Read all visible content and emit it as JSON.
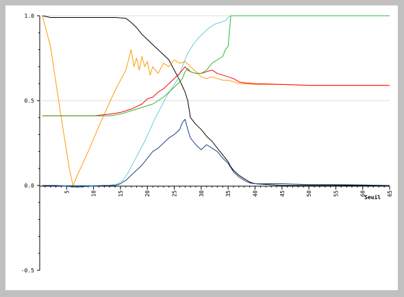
{
  "chart_data": {
    "type": "line",
    "xlabel": "Seuil",
    "ylabel": "",
    "title": "",
    "xlim": [
      0,
      65
    ],
    "ylim": [
      -0.5,
      1.0
    ],
    "x_ticks": [
      5,
      10,
      15,
      20,
      25,
      30,
      35,
      40,
      45,
      50,
      55,
      60,
      65
    ],
    "y_ticks": [
      -0.5,
      0.0,
      0.5,
      1.0
    ],
    "y_tick_labels": [
      "-0.5",
      "0.0",
      "0.5",
      "1.0"
    ],
    "gridlines": [
      0.5,
      1.0
    ],
    "grid": "horizontal at 0.5 and 1.0",
    "legend": "none",
    "series": [
      {
        "color": "#000000",
        "points": [
          [
            0.5,
            1.0
          ],
          [
            2,
            0.99
          ],
          [
            5,
            0.99
          ],
          [
            8,
            0.99
          ],
          [
            10,
            0.99
          ],
          [
            12,
            0.99
          ],
          [
            14,
            0.99
          ],
          [
            16,
            0.985
          ],
          [
            17,
            0.96
          ],
          [
            18,
            0.93
          ],
          [
            19,
            0.89
          ],
          [
            20,
            0.86
          ],
          [
            21,
            0.83
          ],
          [
            22,
            0.8
          ],
          [
            23,
            0.77
          ],
          [
            24,
            0.74
          ],
          [
            25,
            0.68
          ],
          [
            26,
            0.62
          ],
          [
            27,
            0.55
          ],
          [
            27.5,
            0.5
          ],
          [
            28,
            0.4
          ],
          [
            29,
            0.36
          ],
          [
            30,
            0.33
          ],
          [
            31,
            0.29
          ],
          [
            32,
            0.26
          ],
          [
            33,
            0.22
          ],
          [
            34,
            0.18
          ],
          [
            35,
            0.14
          ],
          [
            35.5,
            0.11
          ],
          [
            36,
            0.09
          ],
          [
            37,
            0.06
          ],
          [
            38,
            0.04
          ],
          [
            39,
            0.02
          ],
          [
            40,
            0.01
          ],
          [
            45,
            0.0
          ],
          [
            50,
            0.0
          ],
          [
            55,
            0.0
          ],
          [
            60,
            0.0
          ],
          [
            65,
            0.0
          ]
        ]
      },
      {
        "color": "#5fd0d8",
        "points": [
          [
            0.5,
            0.0
          ],
          [
            5,
            0.0
          ],
          [
            10,
            0.0
          ],
          [
            13,
            0.0
          ],
          [
            14.5,
            0.01
          ],
          [
            15.5,
            0.03
          ],
          [
            16.5,
            0.08
          ],
          [
            17.5,
            0.14
          ],
          [
            18.5,
            0.2
          ],
          [
            19.5,
            0.26
          ],
          [
            20.5,
            0.33
          ],
          [
            21.5,
            0.4
          ],
          [
            22.5,
            0.46
          ],
          [
            23.5,
            0.52
          ],
          [
            24.5,
            0.57
          ],
          [
            25.5,
            0.62
          ],
          [
            26.5,
            0.7
          ],
          [
            27.5,
            0.78
          ],
          [
            28.5,
            0.83
          ],
          [
            29.5,
            0.87
          ],
          [
            30.5,
            0.9
          ],
          [
            31.5,
            0.93
          ],
          [
            32.5,
            0.95
          ],
          [
            33.5,
            0.96
          ],
          [
            34.5,
            0.97
          ],
          [
            35,
            0.99
          ],
          [
            35.5,
            1.0
          ],
          [
            40,
            1.0
          ],
          [
            45,
            1.0
          ],
          [
            50,
            1.0
          ],
          [
            55,
            1.0
          ],
          [
            60,
            1.0
          ],
          [
            65,
            1.0
          ]
        ]
      },
      {
        "color": "#ff9a00",
        "points": [
          [
            0.5,
            1.0
          ],
          [
            2,
            0.82
          ],
          [
            4,
            0.4
          ],
          [
            5.5,
            0.1
          ],
          [
            6.2,
            0.0
          ],
          [
            7,
            0.06
          ],
          [
            9,
            0.2
          ],
          [
            11,
            0.35
          ],
          [
            13,
            0.49
          ],
          [
            14,
            0.56
          ],
          [
            15,
            0.62
          ],
          [
            16,
            0.68
          ],
          [
            16.5,
            0.74
          ],
          [
            17,
            0.8
          ],
          [
            17.5,
            0.7
          ],
          [
            18,
            0.75
          ],
          [
            18.5,
            0.68
          ],
          [
            19,
            0.76
          ],
          [
            19.5,
            0.7
          ],
          [
            20,
            0.73
          ],
          [
            20.5,
            0.65
          ],
          [
            21,
            0.7
          ],
          [
            22,
            0.66
          ],
          [
            23,
            0.72
          ],
          [
            24,
            0.7
          ],
          [
            25,
            0.74
          ],
          [
            26,
            0.72
          ],
          [
            27,
            0.73
          ],
          [
            28,
            0.7
          ],
          [
            29,
            0.67
          ],
          [
            30,
            0.64
          ],
          [
            31,
            0.63
          ],
          [
            32,
            0.64
          ],
          [
            33,
            0.63
          ],
          [
            34,
            0.62
          ],
          [
            35,
            0.62
          ],
          [
            36,
            0.61
          ],
          [
            37,
            0.6
          ],
          [
            38,
            0.6
          ],
          [
            40,
            0.595
          ],
          [
            45,
            0.595
          ],
          [
            50,
            0.59
          ],
          [
            55,
            0.59
          ],
          [
            60,
            0.59
          ],
          [
            65,
            0.59
          ]
        ]
      },
      {
        "color": "#ff0000",
        "points": [
          [
            0.5,
            0.41
          ],
          [
            5,
            0.41
          ],
          [
            10,
            0.41
          ],
          [
            13,
            0.42
          ],
          [
            15,
            0.43
          ],
          [
            17,
            0.45
          ],
          [
            19,
            0.48
          ],
          [
            20,
            0.51
          ],
          [
            21,
            0.52
          ],
          [
            22,
            0.55
          ],
          [
            23,
            0.57
          ],
          [
            24,
            0.6
          ],
          [
            25,
            0.63
          ],
          [
            26,
            0.66
          ],
          [
            27,
            0.7
          ],
          [
            27.5,
            0.68
          ],
          [
            28,
            0.67
          ],
          [
            29,
            0.66
          ],
          [
            30,
            0.66
          ],
          [
            31,
            0.67
          ],
          [
            32,
            0.68
          ],
          [
            33,
            0.66
          ],
          [
            34,
            0.65
          ],
          [
            35,
            0.64
          ],
          [
            36,
            0.63
          ],
          [
            37,
            0.61
          ],
          [
            38,
            0.605
          ],
          [
            40,
            0.6
          ],
          [
            45,
            0.595
          ],
          [
            50,
            0.59
          ],
          [
            55,
            0.59
          ],
          [
            60,
            0.59
          ],
          [
            65,
            0.59
          ]
        ]
      },
      {
        "color": "#2db52d",
        "points": [
          [
            0.5,
            0.41
          ],
          [
            5,
            0.41
          ],
          [
            10,
            0.41
          ],
          [
            13,
            0.41
          ],
          [
            15,
            0.42
          ],
          [
            17,
            0.44
          ],
          [
            19,
            0.46
          ],
          [
            21,
            0.48
          ],
          [
            22,
            0.5
          ],
          [
            23,
            0.52
          ],
          [
            24,
            0.55
          ],
          [
            25,
            0.58
          ],
          [
            26,
            0.61
          ],
          [
            26.5,
            0.63
          ],
          [
            27,
            0.67
          ],
          [
            27.5,
            0.69
          ],
          [
            28,
            0.67
          ],
          [
            29,
            0.66
          ],
          [
            30,
            0.66
          ],
          [
            31,
            0.68
          ],
          [
            32,
            0.72
          ],
          [
            33,
            0.74
          ],
          [
            34,
            0.76
          ],
          [
            34.5,
            0.8
          ],
          [
            35,
            0.82
          ],
          [
            35.5,
            1.0
          ],
          [
            40,
            1.0
          ],
          [
            45,
            1.0
          ],
          [
            50,
            1.0
          ],
          [
            55,
            1.0
          ],
          [
            60,
            1.0
          ],
          [
            65,
            1.0
          ]
        ]
      },
      {
        "color": "#1a3a8a",
        "points": [
          [
            0.5,
            0.0
          ],
          [
            3,
            0.0
          ],
          [
            5,
            -0.005
          ],
          [
            7,
            -0.01
          ],
          [
            9,
            -0.005
          ],
          [
            12,
            0.0
          ],
          [
            14,
            0.0
          ],
          [
            15,
            0.01
          ],
          [
            16,
            0.03
          ],
          [
            17,
            0.06
          ],
          [
            18,
            0.09
          ],
          [
            19,
            0.12
          ],
          [
            20,
            0.16
          ],
          [
            21,
            0.2
          ],
          [
            22,
            0.22
          ],
          [
            23,
            0.25
          ],
          [
            24,
            0.28
          ],
          [
            25,
            0.3
          ],
          [
            26,
            0.33
          ],
          [
            26.5,
            0.37
          ],
          [
            27,
            0.39
          ],
          [
            27.5,
            0.33
          ],
          [
            28,
            0.28
          ],
          [
            29,
            0.24
          ],
          [
            30,
            0.21
          ],
          [
            31,
            0.24
          ],
          [
            32,
            0.22
          ],
          [
            33,
            0.2
          ],
          [
            34,
            0.16
          ],
          [
            35,
            0.13
          ],
          [
            36,
            0.08
          ],
          [
            37,
            0.05
          ],
          [
            38,
            0.03
          ],
          [
            39,
            0.015
          ],
          [
            40,
            0.01
          ],
          [
            45,
            0.01
          ],
          [
            50,
            0.005
          ],
          [
            55,
            0.005
          ],
          [
            60,
            0.003
          ],
          [
            65,
            0.0
          ]
        ]
      }
    ]
  }
}
